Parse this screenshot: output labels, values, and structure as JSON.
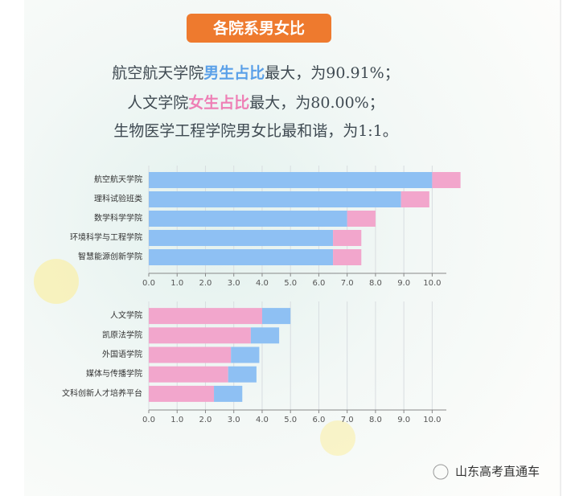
{
  "header": {
    "title": "各院系男女比"
  },
  "summary": [
    [
      "航空航天学院",
      "男生占比",
      "最大，为90.91%；"
    ],
    [
      "人文学院",
      "女生占比",
      "最大，为80.00%；"
    ],
    [
      "生物医学工程学院男女比最和谐，为1:1。"
    ]
  ],
  "watermark": "山东高考直通车",
  "chart_data": [
    {
      "type": "bar",
      "orientation": "horizontal",
      "stacked": true,
      "grid": true,
      "categories": [
        "航空航天学院",
        "理科试验班类",
        "数学科学学院",
        "环境科学与工程学院",
        "智慧能源创新学院"
      ],
      "series": [
        {
          "color": "#8ec0f3",
          "values": [
            10.0,
            8.9,
            7.0,
            6.5,
            6.5
          ]
        },
        {
          "color": "#f2a6cc",
          "values": [
            1.0,
            1.0,
            1.0,
            1.0,
            1.0
          ]
        }
      ],
      "xlim": [
        0,
        10.5
      ],
      "xticks": [
        {
          "value": 0,
          "label": "0.0"
        },
        {
          "value": 1,
          "label": "1.0"
        },
        {
          "value": 2,
          "label": "2.0"
        },
        {
          "value": 3,
          "label": "3.0"
        },
        {
          "value": 4,
          "label": "4.0"
        },
        {
          "value": 5,
          "label": "5.0"
        },
        {
          "value": 6,
          "label": "6.0"
        },
        {
          "value": 7,
          "label": "7.0"
        },
        {
          "value": 8,
          "label": "8.0"
        },
        {
          "value": 9,
          "label": "9.0"
        },
        {
          "value": 10,
          "label": "10.0"
        }
      ]
    },
    {
      "type": "bar",
      "orientation": "horizontal",
      "stacked": true,
      "grid": true,
      "categories": [
        "人文学院",
        "凯原法学院",
        "外国语学院",
        "媒体与传播学院",
        "文科创新人才培养平台"
      ],
      "series": [
        {
          "color": "#f2a6cc",
          "values": [
            4.0,
            3.6,
            2.9,
            2.8,
            2.3
          ]
        },
        {
          "color": "#8ec0f3",
          "values": [
            1.0,
            1.0,
            1.0,
            1.0,
            1.0
          ]
        }
      ],
      "xlim": [
        0,
        10.5
      ],
      "xticks": [
        {
          "value": 0,
          "label": "0.0"
        },
        {
          "value": 1,
          "label": "1.0"
        },
        {
          "value": 2,
          "label": "2.0"
        },
        {
          "value": 3,
          "label": "3.0"
        },
        {
          "value": 4,
          "label": "4.0"
        },
        {
          "value": 5,
          "label": "5.0"
        },
        {
          "value": 6,
          "label": "6.0"
        },
        {
          "value": 7,
          "label": "7.0"
        },
        {
          "value": 8,
          "label": "8.0"
        },
        {
          "value": 9,
          "label": "9.0"
        },
        {
          "value": 10,
          "label": "10.0"
        }
      ]
    }
  ]
}
